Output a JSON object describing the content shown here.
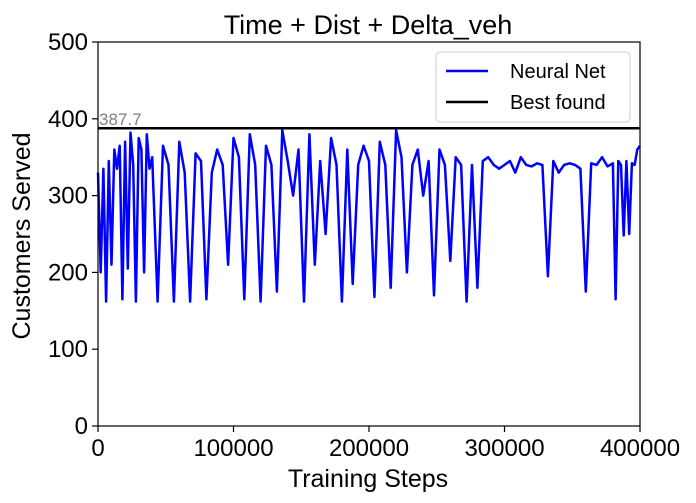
{
  "chart_data": {
    "type": "line",
    "title": "Time + Dist + Delta_veh",
    "xlabel": "Training Steps",
    "ylabel": "Customers Served",
    "xlim": [
      0,
      400000
    ],
    "ylim": [
      0,
      500
    ],
    "xticks": [
      0,
      100000,
      200000,
      300000,
      400000
    ],
    "yticks": [
      0,
      100,
      200,
      300,
      400,
      500
    ],
    "grid": false,
    "legend_position": "top-right",
    "best_found_label": "387.7",
    "series": [
      {
        "name": "Neural Net",
        "color": "#0000ff",
        "x": [
          0,
          2000,
          4000,
          6000,
          8000,
          10000,
          12000,
          14000,
          16000,
          18000,
          20000,
          22000,
          24000,
          26000,
          28000,
          30000,
          32000,
          34000,
          36000,
          38000,
          40000,
          44000,
          48000,
          52000,
          56000,
          60000,
          64000,
          68000,
          72000,
          76000,
          80000,
          84000,
          88000,
          92000,
          96000,
          100000,
          104000,
          108000,
          112000,
          116000,
          120000,
          124000,
          128000,
          132000,
          136000,
          140000,
          144000,
          148000,
          152000,
          156000,
          160000,
          164000,
          168000,
          172000,
          176000,
          180000,
          184000,
          188000,
          192000,
          196000,
          200000,
          204000,
          208000,
          212000,
          216000,
          220000,
          224000,
          228000,
          232000,
          236000,
          240000,
          244000,
          248000,
          252000,
          256000,
          260000,
          264000,
          268000,
          272000,
          276000,
          280000,
          284000,
          288000,
          292000,
          296000,
          300000,
          304000,
          308000,
          312000,
          316000,
          320000,
          324000,
          328000,
          332000,
          336000,
          340000,
          344000,
          348000,
          352000,
          356000,
          360000,
          364000,
          368000,
          372000,
          376000,
          380000,
          382000,
          384000,
          386000,
          388000,
          390000,
          392000,
          394000,
          396000,
          398000,
          400000
        ],
        "y": [
          330,
          200,
          335,
          162,
          345,
          210,
          360,
          335,
          365,
          165,
          370,
          205,
          382,
          340,
          162,
          375,
          360,
          200,
          380,
          335,
          350,
          162,
          365,
          340,
          162,
          370,
          330,
          162,
          355,
          345,
          165,
          330,
          360,
          340,
          210,
          375,
          350,
          165,
          380,
          340,
          162,
          365,
          340,
          175,
          385,
          345,
          300,
          360,
          162,
          380,
          210,
          345,
          250,
          375,
          340,
          162,
          360,
          185,
          340,
          365,
          345,
          168,
          370,
          340,
          180,
          385,
          350,
          200,
          340,
          360,
          300,
          345,
          170,
          360,
          340,
          215,
          350,
          340,
          162,
          340,
          180,
          345,
          350,
          340,
          335,
          340,
          345,
          330,
          350,
          340,
          338,
          342,
          340,
          195,
          345,
          330,
          340,
          342,
          340,
          335,
          175,
          342,
          340,
          350,
          338,
          342,
          165,
          345,
          340,
          248,
          345,
          250,
          342,
          340,
          360,
          365
        ]
      },
      {
        "name": "Best found",
        "color": "#000000",
        "x": [
          0,
          400000
        ],
        "y": [
          387.7,
          387.7
        ]
      }
    ]
  }
}
